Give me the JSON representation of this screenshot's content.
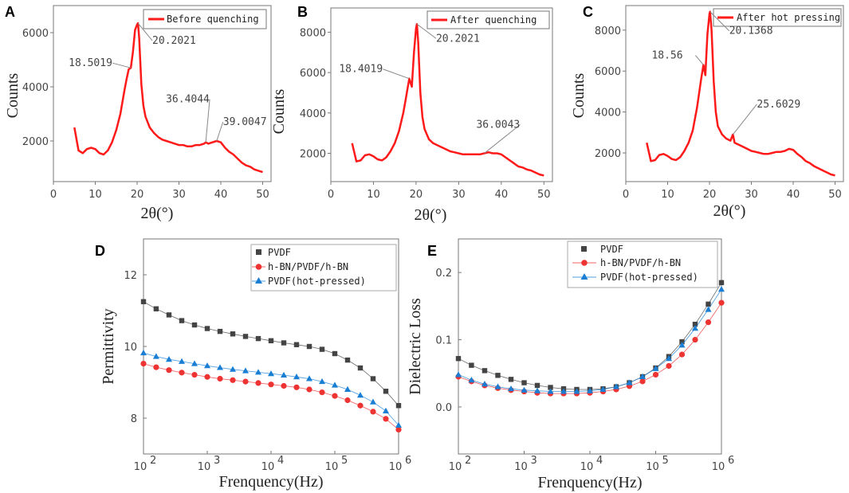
{
  "panels_xrd": [
    {
      "label": "A",
      "legend": "Before quenching",
      "ylabel": "Counts",
      "xlabel": "2θ(°)",
      "xticks": [
        "0",
        "10",
        "20",
        "30",
        "40",
        "50"
      ],
      "yticks": [
        "2000",
        "4000",
        "6000"
      ],
      "annotations": [
        "18.5019",
        "20.2021",
        "36.4044",
        "39.0047"
      ]
    },
    {
      "label": "B",
      "legend": "After quenching",
      "ylabel": "Counts",
      "xlabel": "2θ(°)",
      "xticks": [
        "0",
        "10",
        "20",
        "30",
        "40",
        "50"
      ],
      "yticks": [
        "2000",
        "4000",
        "6000",
        "8000"
      ],
      "annotations": [
        "18.4019",
        "20.2021",
        "36.0043"
      ]
    },
    {
      "label": "C",
      "legend": "After hot pressing",
      "ylabel": "Counts",
      "xlabel": "2θ(°)",
      "xticks": [
        "0",
        "10",
        "20",
        "30",
        "40",
        "50"
      ],
      "yticks": [
        "2000",
        "4000",
        "6000",
        "8000"
      ],
      "annotations": [
        "18.56",
        "20.1368",
        "25.6029"
      ]
    }
  ],
  "panels_diel": [
    {
      "label": "D",
      "ylabel": "Permittivity",
      "xlabel": "Frenquency(Hz)",
      "yticks": [
        "8",
        "10",
        "12"
      ],
      "xtick_base": "10",
      "xtick_exps": [
        "2",
        "3",
        "4",
        "5",
        "6"
      ],
      "legend": [
        "PVDF",
        "h-BN/PVDF/h-BN",
        "PVDF(hot-pressed)"
      ]
    },
    {
      "label": "E",
      "ylabel": "Dielectric Loss",
      "xlabel": "Frenquency(Hz)",
      "yticks": [
        "0.0",
        "0.1",
        "0.2"
      ],
      "xtick_base": "10",
      "xtick_exps": [
        "2",
        "3",
        "4",
        "5",
        "6"
      ],
      "legend": [
        "PVDF",
        "h-BN/PVDF/h-BN",
        "PVDF(hot-pressed)"
      ]
    }
  ],
  "colors": {
    "xrd": "#ff1a1a",
    "pvdf": "#444444",
    "hbn": "#ee3333",
    "hot": "#1a7fd4"
  },
  "chart_data": [
    {
      "type": "line",
      "title": "A",
      "xlabel": "2θ(°)",
      "ylabel": "Counts",
      "xlim": [
        0,
        52
      ],
      "ylim": [
        500,
        7000
      ],
      "series": [
        {
          "name": "Before quenching",
          "x": [
            5,
            6,
            7,
            8,
            9,
            10,
            11,
            12,
            13,
            14,
            15,
            16,
            17,
            17.5,
            18,
            18.5,
            19,
            19.5,
            20,
            20.2,
            20.5,
            21,
            21.5,
            22,
            23,
            24,
            25,
            26,
            27,
            28,
            29,
            30,
            31,
            32,
            33,
            34,
            35,
            36,
            36.4,
            37,
            38,
            39,
            40,
            41,
            42,
            43,
            44,
            45,
            46,
            47,
            48,
            49,
            50
          ],
          "y": [
            2500,
            1650,
            1550,
            1700,
            1750,
            1700,
            1550,
            1500,
            1650,
            1950,
            2400,
            3000,
            3900,
            4300,
            4650,
            4700,
            5300,
            6100,
            6300,
            6350,
            5800,
            4100,
            3300,
            2900,
            2500,
            2300,
            2150,
            2050,
            2000,
            1950,
            1900,
            1850,
            1850,
            1800,
            1800,
            1850,
            1850,
            1900,
            1950,
            1900,
            1950,
            2000,
            1950,
            1750,
            1600,
            1500,
            1350,
            1200,
            1100,
            1050,
            950,
            900,
            850
          ]
        }
      ],
      "annotations": [
        {
          "text": "18.5019",
          "x": 18.5,
          "y": 4700
        },
        {
          "text": "20.2021",
          "x": 20.2,
          "y": 6350
        },
        {
          "text": "36.4044",
          "x": 36.4,
          "y": 1950
        },
        {
          "text": "39.0047",
          "x": 39.0,
          "y": 2000
        }
      ]
    },
    {
      "type": "line",
      "title": "B",
      "xlabel": "2θ(°)",
      "ylabel": "Counts",
      "xlim": [
        0,
        52
      ],
      "ylim": [
        600,
        9200
      ],
      "series": [
        {
          "name": "After quenching",
          "x": [
            5,
            6,
            7,
            8,
            9,
            10,
            11,
            12,
            13,
            14,
            15,
            16,
            17,
            17.5,
            18,
            18.4,
            19,
            19.5,
            20,
            20.2,
            20.5,
            21,
            21.5,
            22,
            23,
            24,
            25,
            26,
            27,
            28,
            29,
            30,
            31,
            32,
            33,
            34,
            35,
            36,
            37,
            38,
            39,
            40,
            41,
            42,
            43,
            44,
            45,
            46,
            47,
            48,
            49,
            50
          ],
          "y": [
            2500,
            1600,
            1650,
            1900,
            1950,
            1850,
            1700,
            1650,
            1800,
            2100,
            2500,
            3100,
            4000,
            4600,
            5200,
            5700,
            5300,
            7000,
            8200,
            8400,
            7500,
            5000,
            3800,
            3200,
            2700,
            2500,
            2400,
            2300,
            2200,
            2100,
            2050,
            2000,
            1950,
            1950,
            1950,
            1950,
            1950,
            2000,
            2050,
            2000,
            2000,
            1950,
            1800,
            1650,
            1500,
            1350,
            1300,
            1200,
            1150,
            1050,
            950,
            900
          ]
        }
      ],
      "annotations": [
        {
          "text": "18.4019",
          "x": 18.4,
          "y": 5700
        },
        {
          "text": "20.2021",
          "x": 20.2,
          "y": 8400
        },
        {
          "text": "36.0043",
          "x": 36.0,
          "y": 2000
        }
      ]
    },
    {
      "type": "line",
      "title": "C",
      "xlabel": "2θ(°)",
      "ylabel": "Counts",
      "xlim": [
        0,
        52
      ],
      "ylim": [
        600,
        9200
      ],
      "series": [
        {
          "name": "After hot pressing",
          "x": [
            5,
            6,
            7,
            8,
            9,
            10,
            11,
            12,
            13,
            14,
            15,
            16,
            17,
            17.5,
            18,
            18.56,
            19,
            19.5,
            20,
            20.14,
            20.5,
            21,
            21.5,
            22,
            23,
            24,
            25,
            25.6,
            26,
            27,
            28,
            29,
            30,
            31,
            32,
            33,
            34,
            35,
            36,
            37,
            38,
            39,
            40,
            41,
            42,
            43,
            44,
            45,
            46,
            47,
            48,
            49,
            50
          ],
          "y": [
            2500,
            1600,
            1650,
            1900,
            1950,
            1850,
            1700,
            1650,
            1800,
            2100,
            2500,
            3100,
            4200,
            4900,
            5600,
            6300,
            5800,
            7800,
            8800,
            8900,
            8000,
            5500,
            4000,
            3300,
            2900,
            2700,
            2600,
            2900,
            2500,
            2400,
            2300,
            2200,
            2100,
            2050,
            2000,
            1950,
            1950,
            2000,
            2050,
            2050,
            2100,
            2200,
            2150,
            1950,
            1800,
            1600,
            1500,
            1350,
            1250,
            1150,
            1050,
            950,
            900
          ]
        }
      ],
      "annotations": [
        {
          "text": "18.56",
          "x": 18.56,
          "y": 6300
        },
        {
          "text": "20.1368",
          "x": 20.14,
          "y": 8900
        },
        {
          "text": "25.6029",
          "x": 25.6,
          "y": 2900
        }
      ]
    },
    {
      "type": "scatter",
      "title": "D",
      "xlabel": "Frenquency(Hz)",
      "ylabel": "Permittivity",
      "xscale": "log",
      "xlim": [
        100,
        1000000
      ],
      "ylim": [
        7,
        13
      ],
      "x": [
        100,
        158,
        251,
        398,
        631,
        1000,
        1585,
        2512,
        3981,
        6310,
        10000,
        15849,
        25119,
        39811,
        63096,
        100000,
        158489,
        251189,
        398107,
        630957,
        1000000
      ],
      "series": [
        {
          "name": "PVDF",
          "values": [
            11.25,
            11.05,
            10.88,
            10.72,
            10.6,
            10.5,
            10.42,
            10.35,
            10.28,
            10.22,
            10.16,
            10.1,
            10.05,
            10.0,
            9.92,
            9.8,
            9.62,
            9.4,
            9.1,
            8.75,
            8.35
          ]
        },
        {
          "name": "h-BN/PVDF/h-BN",
          "values": [
            9.52,
            9.42,
            9.34,
            9.27,
            9.21,
            9.15,
            9.1,
            9.06,
            9.02,
            8.98,
            8.94,
            8.9,
            8.86,
            8.8,
            8.72,
            8.62,
            8.5,
            8.35,
            8.18,
            7.98,
            7.68
          ]
        },
        {
          "name": "PVDF(hot-pressed)",
          "values": [
            9.82,
            9.72,
            9.64,
            9.58,
            9.52,
            9.46,
            9.41,
            9.36,
            9.32,
            9.28,
            9.24,
            9.2,
            9.15,
            9.1,
            9.02,
            8.92,
            8.8,
            8.64,
            8.45,
            8.2,
            7.8
          ]
        }
      ]
    },
    {
      "type": "scatter",
      "title": "E",
      "xlabel": "Frenquency(Hz)",
      "ylabel": "Dielectric Loss",
      "xscale": "log",
      "xlim": [
        100,
        1000000
      ],
      "ylim": [
        -0.07,
        0.25
      ],
      "x": [
        100,
        158,
        251,
        398,
        631,
        1000,
        1585,
        2512,
        3981,
        6310,
        10000,
        15849,
        25119,
        39811,
        63096,
        100000,
        158489,
        251189,
        398107,
        630957,
        1000000
      ],
      "series": [
        {
          "name": "PVDF",
          "values": [
            0.072,
            0.062,
            0.054,
            0.047,
            0.041,
            0.036,
            0.032,
            0.029,
            0.027,
            0.026,
            0.026,
            0.027,
            0.03,
            0.036,
            0.045,
            0.058,
            0.075,
            0.097,
            0.123,
            0.153,
            0.185
          ]
        },
        {
          "name": "h-BN/PVDF/h-BN",
          "values": [
            0.045,
            0.038,
            0.032,
            0.028,
            0.025,
            0.023,
            0.021,
            0.02,
            0.02,
            0.02,
            0.021,
            0.023,
            0.026,
            0.031,
            0.038,
            0.048,
            0.061,
            0.078,
            0.1,
            0.126,
            0.155
          ]
        },
        {
          "name": "PVDF(hot-pressed)",
          "values": [
            0.048,
            0.04,
            0.034,
            0.03,
            0.027,
            0.025,
            0.024,
            0.023,
            0.023,
            0.023,
            0.024,
            0.026,
            0.03,
            0.036,
            0.045,
            0.057,
            0.072,
            0.092,
            0.117,
            0.145,
            0.175
          ]
        }
      ]
    }
  ]
}
